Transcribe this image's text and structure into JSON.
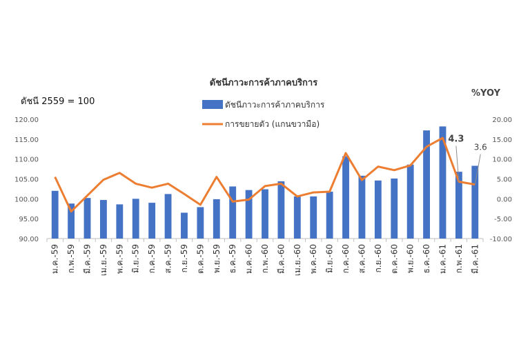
{
  "chart_data": {
    "type": "bar",
    "title": "ดัชนีภาวะการค้าภาคบริการ",
    "left_axis_note": "ดัชนี 2559 = 100",
    "right_axis_note": "%YOY",
    "categories": [
      "ม.ค.-59",
      "ก.พ.-59",
      "มี.ค.-59",
      "เม.ย.-59",
      "พ.ค.-59",
      "มิ.ย.-59",
      "ก.ค.-59",
      "ส.ค.-59",
      "ก.ย.-59",
      "ต.ค.-59",
      "พ.ย.-59",
      "ธ.ค.-59",
      "ม.ค.-60",
      "ก.พ.-60",
      "มี.ค.-60",
      "เม.ย.-60",
      "พ.ค.-60",
      "มิ.ย.-60",
      "ก.ค.-60",
      "ส.ค.-60",
      "ก.ย.-60",
      "ต.ค.-60",
      "พ.ย.-60",
      "ธ.ค.-60",
      "ม.ค.-61",
      "ก.พ.-61",
      "มี.ค.-61"
    ],
    "series": [
      {
        "name": "ดัชนีภาวะการค้าภาคบริการ",
        "type": "bar",
        "axis": "left",
        "color": "#4472C4",
        "values": [
          102.0,
          98.8,
          100.2,
          99.7,
          98.6,
          100.0,
          99.0,
          101.2,
          96.5,
          97.9,
          99.9,
          103.1,
          102.2,
          102.4,
          104.4,
          100.6,
          100.6,
          101.8,
          110.7,
          105.8,
          104.6,
          105.1,
          108.6,
          117.2,
          118.2,
          106.8,
          108.3
        ]
      },
      {
        "name": "การขยายตัว (แกนขวามือ)",
        "type": "line",
        "axis": "right",
        "color": "#ED7D31",
        "values": [
          5.5,
          -3.2,
          0.8,
          4.8,
          6.5,
          3.8,
          2.8,
          3.8,
          1.2,
          -1.5,
          5.5,
          -0.7,
          -0.2,
          3.2,
          3.8,
          0.6,
          1.6,
          1.8,
          11.5,
          4.7,
          8.1,
          7.2,
          8.4,
          13.1,
          15.3,
          4.3,
          3.6
        ]
      }
    ],
    "data_labels": [
      {
        "series": 1,
        "index": 25,
        "text": "4.3",
        "bold": true
      },
      {
        "series": 1,
        "index": 26,
        "text": "3.6",
        "bold": false
      }
    ],
    "left_ylim": [
      90,
      120
    ],
    "left_ticks": [
      "90.00",
      "95.00",
      "100.00",
      "105.00",
      "110.00",
      "115.00",
      "120.00"
    ],
    "right_ylim": [
      -10,
      20
    ],
    "right_ticks": [
      "-10.00",
      "-5.00",
      "0.00",
      "5.00",
      "10.00",
      "15.00",
      "20.00"
    ],
    "grid": false,
    "legend_position": "top-center"
  }
}
